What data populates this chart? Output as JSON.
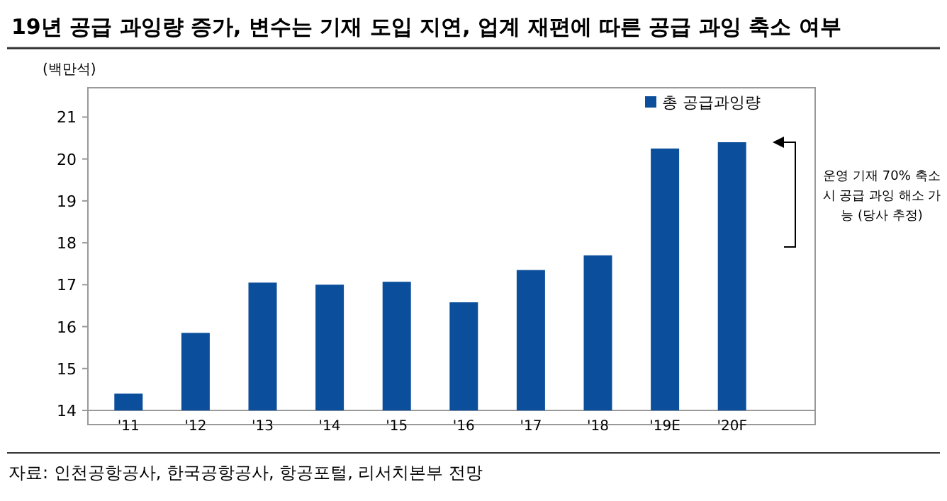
{
  "chart_data": {
    "type": "bar",
    "title": "19년 공급 과잉량 증가, 변수는 기재 도입 지연, 업계 재편에 따른 공급 과잉 축소 여부",
    "ylabel": "(백만석)",
    "categories": [
      "'11",
      "'12",
      "'13",
      "'14",
      "'15",
      "'16",
      "'17",
      "'18",
      "'19E",
      "'20F"
    ],
    "series": [
      {
        "name": "총 공급과잉량",
        "color": "#0b4f9c",
        "values": [
          14.4,
          15.85,
          17.05,
          17.0,
          17.07,
          16.58,
          17.35,
          17.7,
          20.25,
          20.4
        ]
      }
    ],
    "ylim": [
      14,
      21.7
    ],
    "yticks": [
      14,
      15,
      16,
      17,
      18,
      19,
      20,
      21
    ],
    "legend": "top right",
    "annotations": [
      "운영 기재 70% 축소시 공급 과잉 해소 가능 (당사 추정)",
      "자료: 인천공항공사, 한국공항공사, 항공포털, 리서치본부 전망"
    ]
  }
}
